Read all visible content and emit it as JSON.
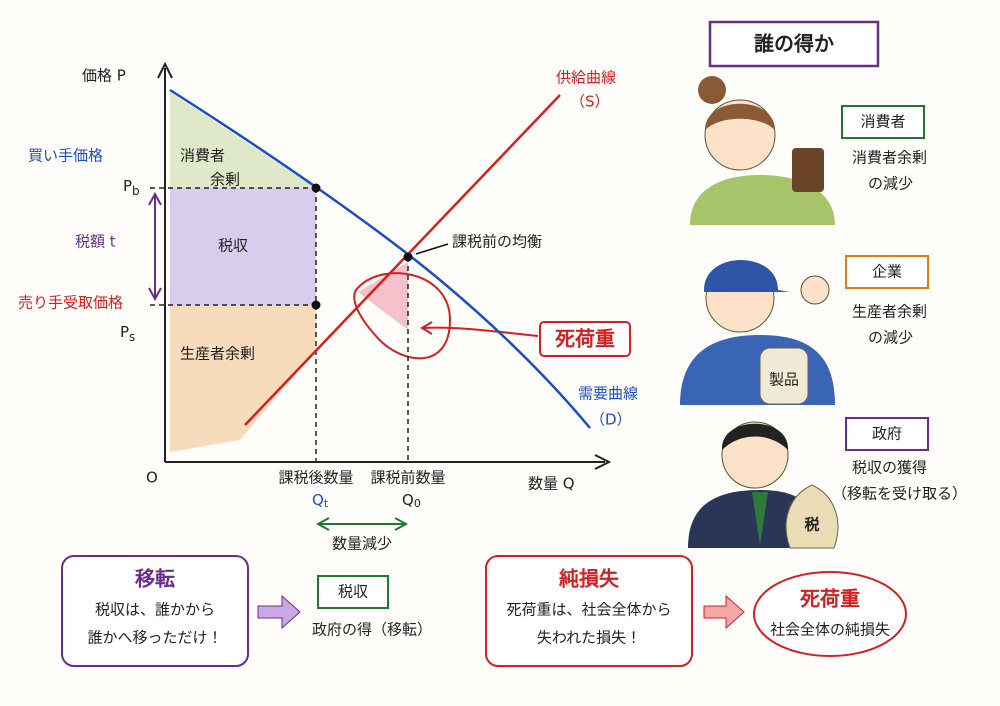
{
  "header": {
    "title": "誰の得か"
  },
  "graph": {
    "y_axis": "価格 P",
    "x_axis": "数量 Q",
    "origin": "O",
    "buyer_price": "買い手価格",
    "pb": {
      "main": "P",
      "sub": "b"
    },
    "tax": "税額 t",
    "seller_price": "売り手受取価格",
    "ps": {
      "main": "P",
      "sub": "s"
    },
    "consumer_surplus": [
      "消費者",
      "余剰"
    ],
    "tax_revenue": "税収",
    "producer_surplus": "生産者余剰",
    "supply": [
      "供給曲線",
      "（S）"
    ],
    "demand": [
      "需要曲線",
      "（D）"
    ],
    "equilibrium": "課税前の均衡",
    "deadweight": "死荷重",
    "qt": {
      "caption": "課税後数量",
      "main": "Q",
      "sub": "t"
    },
    "q0": {
      "caption": "課税前数量",
      "main": "Q",
      "sub": "0"
    },
    "reduction": "数量減少"
  },
  "who_gains": [
    {
      "label": "消費者",
      "lines": [
        "消費者余剰",
        "の減少"
      ]
    },
    {
      "label": "企業",
      "lines": [
        "生産者余剰",
        "の減少"
      ],
      "item": "製品"
    },
    {
      "label": "政府",
      "lines": [
        "税収の獲得",
        "（移転を受け取る）"
      ],
      "item": "税"
    }
  ],
  "bottom": {
    "transfer": {
      "title": "移転",
      "lines": [
        "税収は、誰かから",
        "誰かへ移っただけ！"
      ]
    },
    "tax_box": {
      "title": "税収",
      "caption": "政府の得（移転）"
    },
    "net_loss": {
      "title": "純損失",
      "lines": [
        "死荷重は、社会全体から",
        "失われた損失！"
      ]
    },
    "deadweight_box": {
      "title": "死荷重",
      "caption": "社会全体の純損失"
    }
  }
}
